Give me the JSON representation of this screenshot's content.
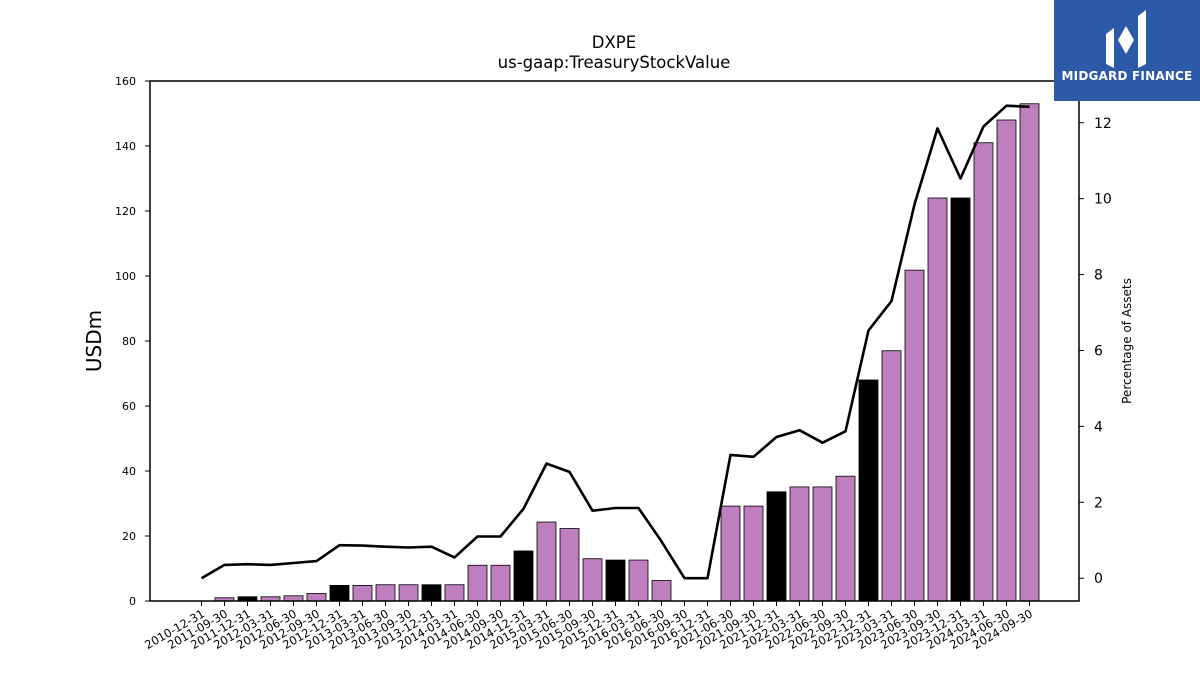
{
  "brand": {
    "name": "MIDGARD FINANCE",
    "bg_color": "#2d5aa8"
  },
  "colors": {
    "bar_default": "#bf7fbf",
    "bar_highlight": "#000000",
    "line": "#000000"
  },
  "chart_data": {
    "type": "bar",
    "title": "DXPE",
    "subtitle": "us-gaap:TreasuryStockValue",
    "ylabel": "USDm",
    "y2label": "Percentage of Assets",
    "ylim": [
      0,
      160
    ],
    "y2lim": [
      -0.6,
      13.1
    ],
    "yticks": [
      0,
      20,
      40,
      60,
      80,
      100,
      120,
      140,
      160
    ],
    "y2ticks": [
      0,
      2,
      4,
      6,
      8,
      10,
      12
    ],
    "categories": [
      "2010-12-31",
      "2011-09-30",
      "2011-12-31",
      "2012-03-31",
      "2012-06-30",
      "2012-09-30",
      "2012-12-31",
      "2013-03-31",
      "2013-06-30",
      "2013-09-30",
      "2013-12-31",
      "2014-03-31",
      "2014-06-30",
      "2014-09-30",
      "2014-12-31",
      "2015-03-31",
      "2015-06-30",
      "2015-09-30",
      "2015-12-31",
      "2016-03-31",
      "2016-06-30",
      "2016-09-30",
      "2016-12-31",
      "2021-06-30",
      "2021-09-30",
      "2021-12-31",
      "2022-03-31",
      "2022-06-30",
      "2022-09-30",
      "2022-12-31",
      "2023-03-31",
      "2023-06-30",
      "2023-09-30",
      "2023-12-31",
      "2024-03-31",
      "2024-06-30",
      "2024-09-30"
    ],
    "series": [
      {
        "type": "bar",
        "values": [
          0,
          1,
          1.3,
          1.3,
          1.6,
          2.3,
          4.8,
          4.8,
          5,
          5,
          5,
          5,
          11,
          11,
          15.4,
          24.3,
          22.3,
          13,
          12.6,
          12.6,
          6.3,
          0,
          0,
          29.2,
          29.2,
          33.6,
          35.1,
          35.1,
          38.4,
          68,
          77,
          101.8,
          124,
          124,
          141,
          148,
          153
        ],
        "highlight": [
          false,
          false,
          true,
          false,
          false,
          false,
          true,
          false,
          false,
          false,
          true,
          false,
          false,
          false,
          true,
          false,
          false,
          false,
          true,
          false,
          false,
          false,
          false,
          false,
          false,
          true,
          false,
          false,
          false,
          true,
          false,
          false,
          false,
          true,
          false,
          false,
          false
        ]
      },
      {
        "type": "line",
        "axis": "right",
        "values": [
          0,
          0.35,
          0.37,
          0.35,
          0.4,
          0.45,
          0.87,
          0.86,
          0.83,
          0.81,
          0.83,
          0.55,
          1.1,
          1.1,
          1.83,
          3.02,
          2.8,
          1.78,
          1.85,
          1.85,
          0.97,
          0,
          0,
          3.25,
          3.2,
          3.72,
          3.9,
          3.57,
          3.87,
          6.53,
          7.3,
          9.85,
          11.85,
          10.53,
          11.9,
          12.45,
          12.42
        ]
      }
    ],
    "grid": false,
    "legend": "none"
  }
}
